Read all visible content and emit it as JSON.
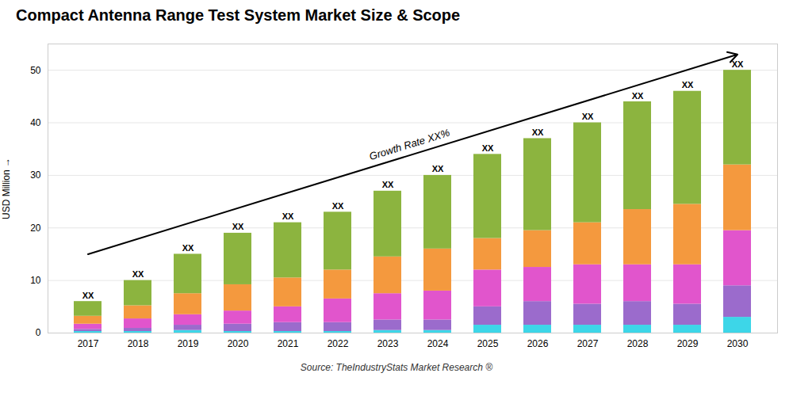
{
  "chart_data": {
    "type": "bar",
    "stacked": true,
    "title": "Compact Antenna Range Test System Market Size & Scope",
    "ylabel": "USD Million",
    "caption": "Source: TheIndustryStats Market Research ®",
    "categories": [
      "2017",
      "2018",
      "2019",
      "2020",
      "2021",
      "2022",
      "2023",
      "2024",
      "2025",
      "2026",
      "2027",
      "2028",
      "2029",
      "2030"
    ],
    "series": [
      {
        "color": "#3dd6e8",
        "values": [
          0.3,
          0.3,
          0.5,
          0.3,
          0.3,
          0.3,
          0.5,
          0.5,
          1.5,
          1.5,
          1.5,
          1.5,
          1.5,
          3.0
        ]
      },
      {
        "color": "#9b6bcc",
        "values": [
          0.4,
          0.6,
          1.0,
          1.4,
          1.7,
          1.7,
          2.0,
          2.0,
          3.5,
          4.5,
          4.0,
          4.5,
          4.0,
          6.0
        ]
      },
      {
        "color": "#e155cc",
        "values": [
          1.0,
          1.8,
          2.0,
          2.5,
          3.0,
          4.5,
          5.0,
          5.5,
          7.0,
          6.5,
          7.5,
          7.0,
          7.5,
          10.5
        ]
      },
      {
        "color": "#f4993e",
        "values": [
          1.5,
          2.5,
          4.0,
          5.0,
          5.5,
          5.5,
          7.0,
          8.0,
          6.0,
          7.0,
          8.0,
          10.5,
          11.5,
          12.5
        ]
      },
      {
        "color": "#8cb43f",
        "values": [
          2.8,
          4.8,
          7.5,
          9.8,
          10.5,
          11.0,
          12.5,
          14.0,
          16.0,
          17.5,
          19.0,
          20.5,
          21.5,
          18.0
        ]
      }
    ],
    "top_labels": [
      {
        "text": "XX",
        "x": "2017",
        "y": 6
      },
      {
        "text": "XX",
        "x": "2018",
        "y": 10
      },
      {
        "text": "XX",
        "x": "2019",
        "y": 15
      },
      {
        "text": "XX",
        "x": "2020",
        "y": 19
      },
      {
        "text": "XX",
        "x": "2021",
        "y": 21
      },
      {
        "text": "XX",
        "x": "2022",
        "y": 23
      },
      {
        "text": "XX",
        "x": "2023",
        "y": 27
      },
      {
        "text": "XX",
        "x": "2024",
        "y": 30
      },
      {
        "text": "XX",
        "x": "2025",
        "y": 34
      },
      {
        "text": "XX",
        "x": "2026",
        "y": 37
      },
      {
        "text": "XX",
        "x": "2027",
        "y": 40
      },
      {
        "text": "XX",
        "x": "2028",
        "y": 44
      },
      {
        "text": "XX",
        "x": "2029",
        "y": 46
      },
      {
        "text": "XX",
        "x": "2030",
        "y": 50
      }
    ],
    "arrow": {
      "text": "Growth Rate XX%",
      "x1": "2017",
      "y1": 15,
      "x2": "2030",
      "y2": 53
    },
    "ylim": [
      0,
      55
    ],
    "yticks": [
      0,
      10,
      20,
      30,
      40,
      50
    ],
    "grid": true
  }
}
